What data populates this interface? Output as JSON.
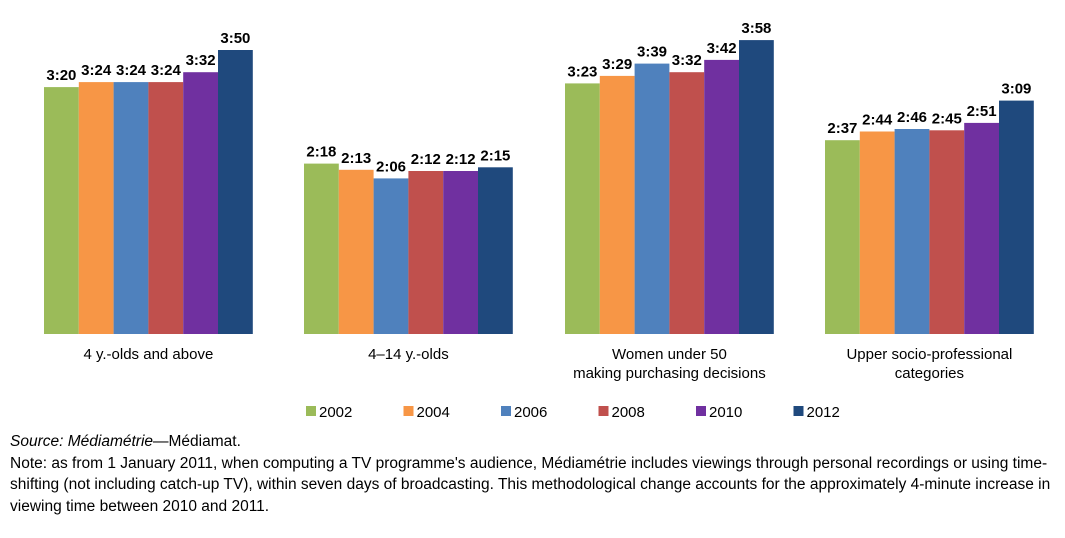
{
  "chart_data": {
    "type": "bar",
    "value_format": "h:mm",
    "categories": [
      "4 y.-olds and above",
      "4–14 y.-olds",
      "Women under 50\nmaking purchasing decisions",
      "Upper socio-professional\ncategories"
    ],
    "series": [
      {
        "name": "2002",
        "color": "#9BBB59",
        "values": [
          200,
          138,
          203,
          157
        ],
        "labels": [
          "3:20",
          "2:18",
          "3:23",
          "2:37"
        ]
      },
      {
        "name": "2004",
        "color": "#F79646",
        "values": [
          204,
          133,
          209,
          164
        ],
        "labels": [
          "3:24",
          "2:13",
          "3:29",
          "2:44"
        ]
      },
      {
        "name": "2006",
        "color": "#4F81BD",
        "values": [
          204,
          126,
          219,
          166
        ],
        "labels": [
          "3:24",
          "2:06",
          "3:39",
          "2:46"
        ]
      },
      {
        "name": "2008",
        "color": "#C0504D",
        "values": [
          204,
          132,
          212,
          165
        ],
        "labels": [
          "3:24",
          "2:12",
          "3:32",
          "2:45"
        ]
      },
      {
        "name": "2010",
        "color": "#7030A0",
        "values": [
          212,
          132,
          222,
          171
        ],
        "labels": [
          "3:32",
          "2:12",
          "3:42",
          "2:51"
        ]
      },
      {
        "name": "2012",
        "color": "#1F497D",
        "values": [
          230,
          135,
          238,
          189
        ],
        "labels": [
          "3:50",
          "2:15",
          "3:58",
          "3:09"
        ]
      }
    ],
    "ylim": [
      0,
      240
    ],
    "grid": false,
    "legend_position": "bottom"
  },
  "source": {
    "label": "Source: Médiamétrie",
    "rest": "—Médiamat."
  },
  "note": "Note: as from 1 January 2011, when computing a TV programme's audience, Médiamétrie includes viewings through personal recordings or using time-shifting (not including catch-up TV), within seven days of broadcasting. This methodological change accounts for the approximately 4-minute increase in viewing time between 2010 and 2011."
}
